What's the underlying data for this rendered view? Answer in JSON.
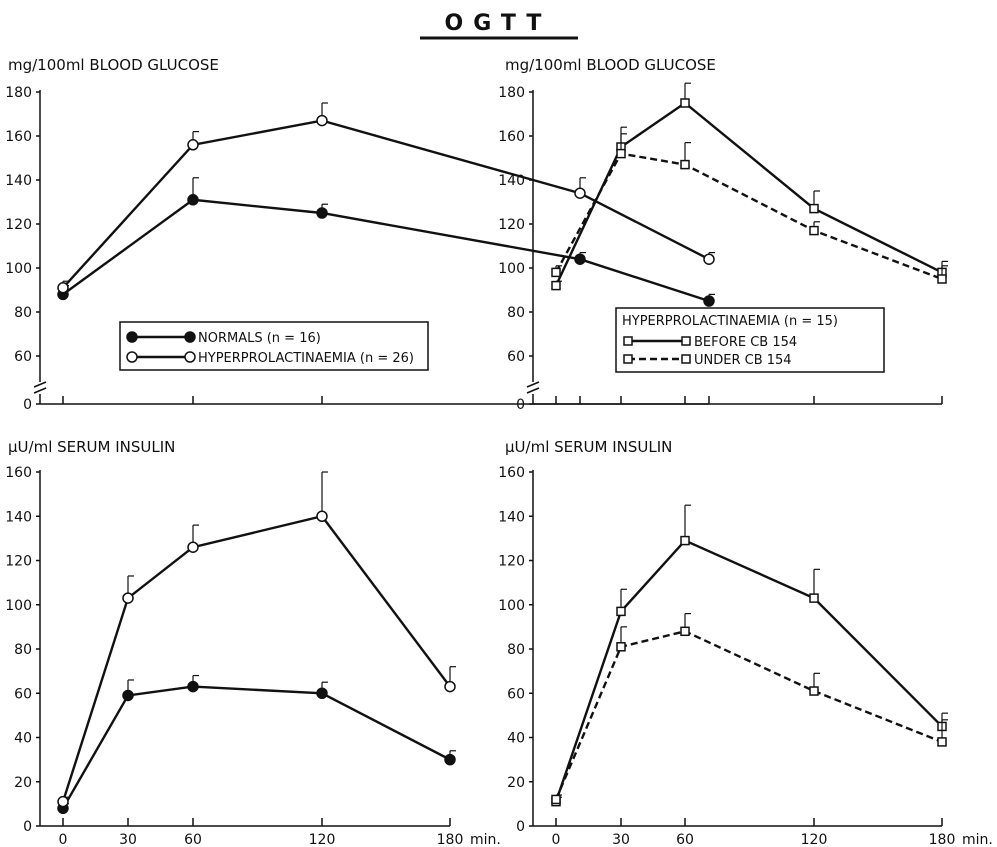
{
  "figure": {
    "title": "OGTT"
  },
  "chart_data": [
    {
      "id": "p1",
      "type": "line",
      "title": "",
      "ylabel": "mg/100ml BLOOD GLUCOSE",
      "xlabel": "",
      "x": [
        0,
        30,
        60,
        120,
        180
      ],
      "xticks": [],
      "yticks": [
        60,
        80,
        100,
        120,
        140,
        160,
        180
      ],
      "ylim": [
        50,
        180
      ],
      "axis_break": true,
      "zero_label": "0",
      "legend": {
        "placement": "bottom-center"
      },
      "series": [
        {
          "name": "NORMALS (n = 16)",
          "marker": "filled-circle",
          "dash": "solid",
          "values": [
            88,
            131,
            125,
            104,
            85
          ],
          "errors": [
            4,
            10,
            4,
            3,
            3
          ]
        },
        {
          "name": "HYPERPROLACTINAEMIA (n = 26)",
          "marker": "open-circle",
          "dash": "solid",
          "values": [
            91,
            156,
            167,
            134,
            104
          ],
          "errors": [
            3,
            6,
            8,
            7,
            3
          ]
        }
      ]
    },
    {
      "id": "p2",
      "type": "line",
      "title": "",
      "ylabel": "mg/100ml BLOOD GLUCOSE",
      "xlabel": "",
      "x": [
        0,
        30,
        60,
        120,
        180
      ],
      "xticks": [],
      "yticks": [
        60,
        80,
        100,
        120,
        140,
        160,
        180
      ],
      "ylim": [
        50,
        180
      ],
      "axis_break": true,
      "zero_label": "0",
      "legend": {
        "placement": "bottom-right",
        "heading": "HYPERPROLACTINAEMIA (n = 15)"
      },
      "series": [
        {
          "name": "BEFORE CB 154",
          "marker": "open-square",
          "dash": "solid",
          "values": [
            92,
            155,
            175,
            127,
            98
          ],
          "errors": [
            2,
            9,
            9,
            8,
            5
          ]
        },
        {
          "name": "UNDER CB 154",
          "marker": "open-square",
          "dash": "dashed",
          "values": [
            98,
            152,
            147,
            117,
            95
          ],
          "errors": [
            3,
            9,
            10,
            4,
            6
          ]
        }
      ]
    },
    {
      "id": "p3",
      "type": "line",
      "title": "",
      "ylabel": "µU/ml SERUM INSULIN",
      "xlabel": "min.",
      "x": [
        0,
        30,
        60,
        120,
        180
      ],
      "xticks": [
        "0",
        "30",
        "60",
        "120",
        "180"
      ],
      "yticks": [
        0,
        20,
        40,
        60,
        80,
        100,
        120,
        140,
        160
      ],
      "ylim": [
        0,
        160
      ],
      "axis_break": false,
      "series": [
        {
          "name": "NORMALS (n = 16)",
          "marker": "filled-circle",
          "dash": "solid",
          "values": [
            8,
            59,
            63,
            60,
            30
          ],
          "errors": [
            2,
            7,
            5,
            5,
            4
          ]
        },
        {
          "name": "HYPERPROLACTINAEMIA (n = 26)",
          "marker": "open-circle",
          "dash": "solid",
          "values": [
            11,
            103,
            126,
            140,
            63
          ],
          "errors": [
            2,
            10,
            10,
            20,
            9
          ]
        }
      ]
    },
    {
      "id": "p4",
      "type": "line",
      "title": "",
      "ylabel": "µU/ml SERUM INSULIN",
      "xlabel": "min.",
      "x": [
        0,
        30,
        60,
        120,
        180
      ],
      "xticks": [
        "0",
        "30",
        "60",
        "120",
        "180"
      ],
      "yticks": [
        0,
        20,
        40,
        60,
        80,
        100,
        120,
        140,
        160
      ],
      "ylim": [
        0,
        160
      ],
      "axis_break": false,
      "series": [
        {
          "name": "BEFORE CB 154",
          "marker": "open-square",
          "dash": "solid",
          "values": [
            11,
            97,
            129,
            103,
            45
          ],
          "errors": [
            2,
            10,
            16,
            13,
            6
          ]
        },
        {
          "name": "UNDER CB 154",
          "marker": "open-square",
          "dash": "dashed",
          "values": [
            12,
            81,
            88,
            61,
            38
          ],
          "errors": [
            2,
            9,
            8,
            8,
            10
          ]
        }
      ]
    }
  ]
}
